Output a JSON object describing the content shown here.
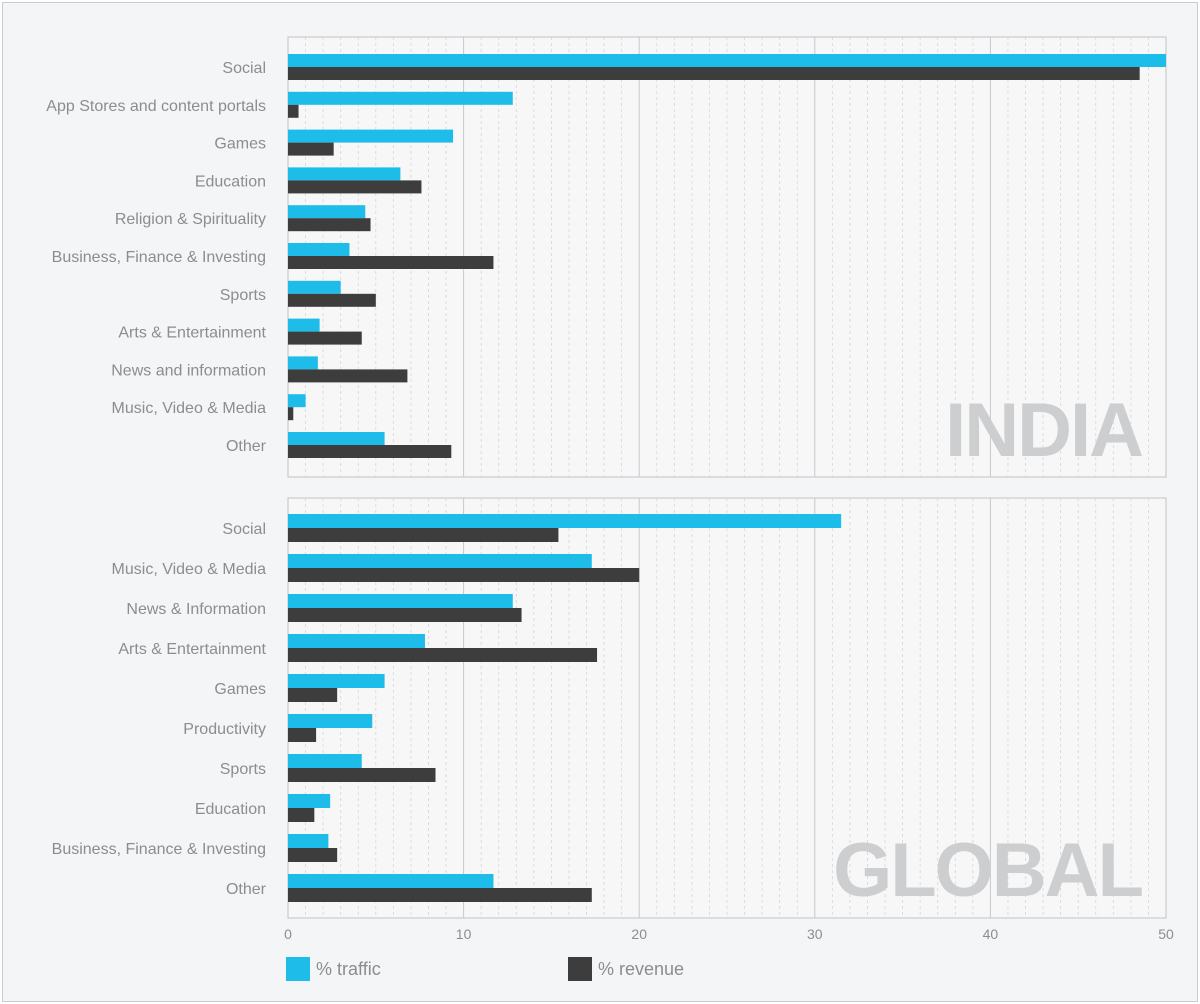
{
  "colors": {
    "traffic": "#1ebce8",
    "revenue": "#3d3d3d"
  },
  "legend": {
    "traffic": "% traffic",
    "revenue": "% revenue"
  },
  "x_ticks": [
    "0",
    "10",
    "20",
    "30",
    "40",
    "50"
  ],
  "chart_data": [
    {
      "type": "bar",
      "orientation": "horizontal",
      "watermark": "INDIA",
      "categories": [
        "Social",
        "App Stores and content portals",
        "Games",
        "Education",
        "Religion & Spirituality",
        "Business, Finance & Investing",
        "Sports",
        "Arts & Entertainment",
        "News and information",
        "Music, Video & Media",
        "Other"
      ],
      "series": [
        {
          "name": "% traffic",
          "values": [
            50,
            12.8,
            9.4,
            6.4,
            4.4,
            3.5,
            3.0,
            1.8,
            1.7,
            1.0,
            5.5
          ]
        },
        {
          "name": "% revenue",
          "values": [
            48.5,
            0.6,
            2.6,
            7.6,
            4.7,
            11.7,
            5.0,
            4.2,
            6.8,
            0.3,
            9.3
          ]
        }
      ],
      "xlim": [
        0,
        50
      ],
      "grid": true
    },
    {
      "type": "bar",
      "orientation": "horizontal",
      "watermark": "GLOBAL",
      "categories": [
        "Social",
        "Music, Video & Media",
        "News & Information",
        "Arts & Entertainment",
        "Games",
        "Productivity",
        "Sports",
        "Education",
        "Business, Finance & Investing",
        "Other"
      ],
      "series": [
        {
          "name": "% traffic",
          "values": [
            31.5,
            17.3,
            12.8,
            7.8,
            5.5,
            4.8,
            4.2,
            2.4,
            2.3,
            11.7
          ]
        },
        {
          "name": "% revenue",
          "values": [
            15.4,
            20.0,
            13.3,
            17.6,
            2.8,
            1.6,
            8.4,
            1.5,
            2.8,
            17.3
          ]
        }
      ],
      "xlim": [
        0,
        50
      ],
      "grid": true
    }
  ]
}
